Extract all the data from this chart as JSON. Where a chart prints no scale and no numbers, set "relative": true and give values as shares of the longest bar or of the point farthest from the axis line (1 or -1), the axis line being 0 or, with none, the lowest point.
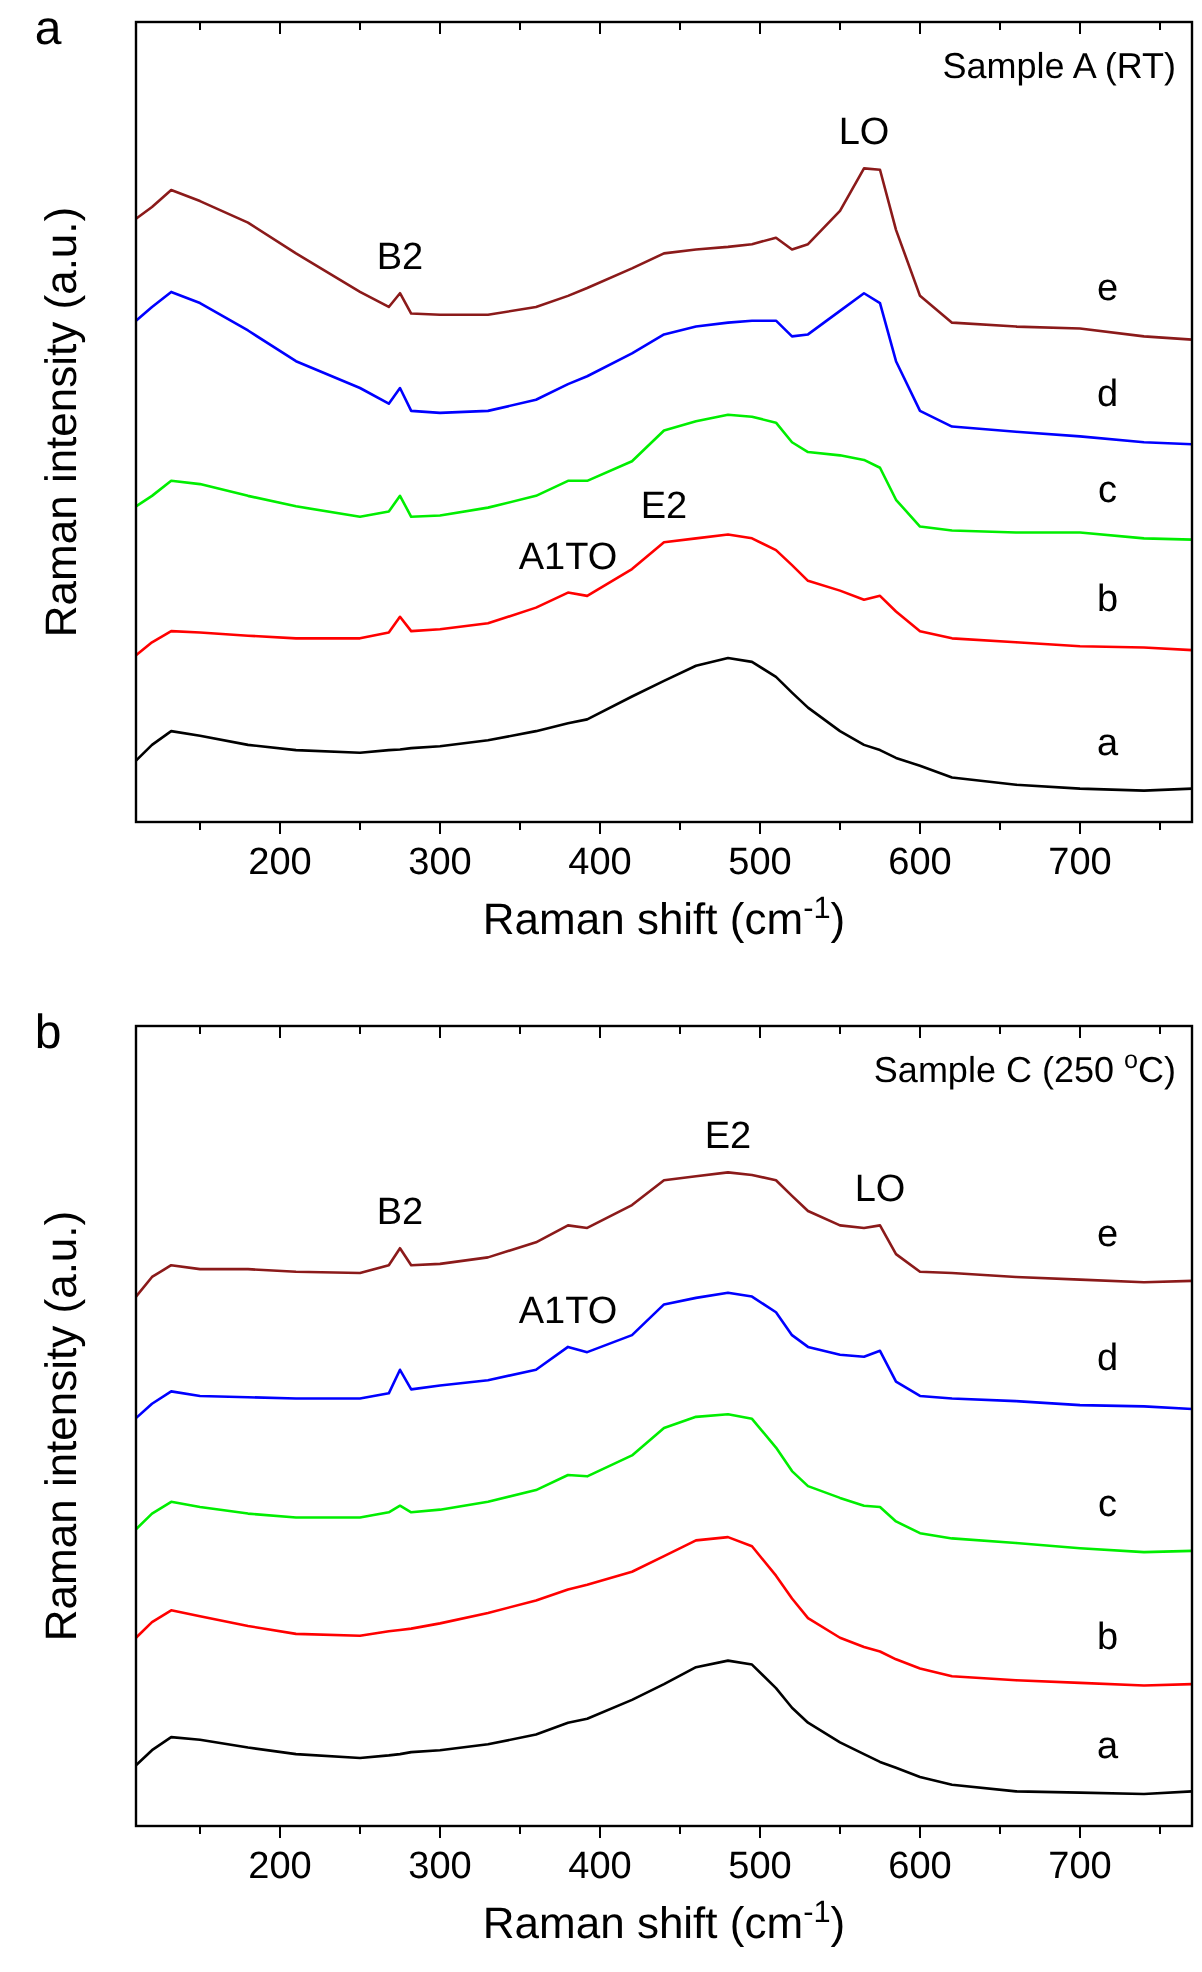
{
  "chart_data": [
    {
      "type": "line",
      "title": "a",
      "subtitle": "Sample A (RT)",
      "xlabel": "Raman shift (cm$^{-1}$)",
      "ylabel": "Raman intensity (a.u.)",
      "relative": true,
      "xlim": [
        110,
        770
      ],
      "xticks": [
        {
          "value": 150,
          "label": null
        },
        200,
        {
          "value": 250,
          "label": null
        },
        300,
        {
          "value": 350,
          "label": null
        },
        400,
        {
          "value": 450,
          "label": null
        },
        500,
        {
          "value": 550,
          "label": null
        },
        600,
        {
          "value": 650,
          "label": null
        },
        700,
        {
          "value": 750,
          "label": null
        }
      ],
      "grid": false,
      "marker": "none",
      "line_style": "solid",
      "x": [
        110,
        120,
        132,
        150,
        180,
        210,
        250,
        268,
        275,
        282,
        300,
        330,
        360,
        380,
        392,
        420,
        440,
        460,
        480,
        495,
        510,
        520,
        530,
        550,
        565,
        575,
        585,
        600,
        620,
        660,
        700,
        740,
        770
      ],
      "series": [
        {
          "name": "a",
          "color": "#000000",
          "values": [
            0.094,
            0.118,
            0.139,
            0.132,
            0.118,
            0.11,
            0.106,
            0.11,
            0.111,
            0.113,
            0.116,
            0.125,
            0.139,
            0.151,
            0.157,
            0.192,
            0.216,
            0.239,
            0.251,
            0.245,
            0.222,
            0.198,
            0.175,
            0.139,
            0.118,
            0.11,
            0.098,
            0.086,
            0.068,
            0.057,
            0.051,
            0.048,
            0.051
          ]
        },
        {
          "name": "b",
          "color": "#ff0000",
          "values": [
            0.255,
            0.275,
            0.292,
            0.29,
            0.285,
            0.281,
            0.281,
            0.29,
            0.314,
            0.292,
            0.295,
            0.304,
            0.328,
            0.351,
            0.346,
            0.387,
            0.428,
            0.434,
            0.44,
            0.434,
            0.416,
            0.393,
            0.369,
            0.354,
            0.34,
            0.346,
            0.322,
            0.292,
            0.281,
            0.275,
            0.269,
            0.267,
            0.263
          ]
        },
        {
          "name": "c",
          "color": "#00ee00",
          "values": [
            0.483,
            0.499,
            0.522,
            0.517,
            0.499,
            0.483,
            0.467,
            0.475,
            0.499,
            0.467,
            0.469,
            0.481,
            0.499,
            0.522,
            0.522,
            0.552,
            0.599,
            0.613,
            0.623,
            0.62,
            0.611,
            0.581,
            0.566,
            0.561,
            0.554,
            0.542,
            0.493,
            0.452,
            0.446,
            0.443,
            0.443,
            0.434,
            0.432
          ]
        },
        {
          "name": "d",
          "color": "#0000ff",
          "values": [
            0.767,
            0.788,
            0.811,
            0.794,
            0.752,
            0.705,
            0.664,
            0.64,
            0.664,
            0.629,
            0.626,
            0.629,
            0.646,
            0.67,
            0.682,
            0.717,
            0.746,
            0.758,
            0.764,
            0.767,
            0.767,
            0.743,
            0.746,
            0.782,
            0.809,
            0.794,
            0.705,
            0.629,
            0.605,
            0.597,
            0.59,
            0.581,
            0.578
          ]
        },
        {
          "name": "e",
          "color": "#8b1a1a",
          "values": [
            0.923,
            0.941,
            0.967,
            0.95,
            0.917,
            0.87,
            0.811,
            0.788,
            0.809,
            0.778,
            0.776,
            0.776,
            0.788,
            0.805,
            0.817,
            0.847,
            0.87,
            0.876,
            0.88,
            0.884,
            0.894,
            0.876,
            0.884,
            0.935,
            1.0,
            0.998,
            0.906,
            0.805,
            0.764,
            0.758,
            0.755,
            0.743,
            0.738
          ]
        }
      ],
      "annotations": [
        {
          "text": "B2",
          "x": 275,
          "y": 0.809
        },
        {
          "text": "A1TO",
          "x": 380,
          "y": 0.351
        },
        {
          "text": "E2",
          "x": 440,
          "y": 0.428
        },
        {
          "text": "LO",
          "x": 565,
          "y": 1.0
        }
      ]
    },
    {
      "type": "line",
      "title": "b",
      "subtitle": "Sample C (250 $^{o}$C)",
      "xlabel": "Raman shift (cm$^{-1}$)",
      "ylabel": "Raman intensity (a.u.)",
      "relative": true,
      "xlim": [
        110,
        770
      ],
      "xticks": [
        {
          "value": 150,
          "label": null
        },
        200,
        {
          "value": 250,
          "label": null
        },
        300,
        {
          "value": 350,
          "label": null
        },
        400,
        {
          "value": 450,
          "label": null
        },
        500,
        {
          "value": 550,
          "label": null
        },
        600,
        {
          "value": 650,
          "label": null
        },
        700,
        {
          "value": 750,
          "label": null
        }
      ],
      "grid": false,
      "marker": "none",
      "line_style": "solid",
      "x": [
        110,
        120,
        132,
        150,
        180,
        210,
        250,
        268,
        275,
        282,
        300,
        330,
        360,
        380,
        392,
        420,
        440,
        460,
        480,
        495,
        510,
        520,
        530,
        550,
        565,
        575,
        585,
        600,
        620,
        660,
        700,
        740,
        770
      ],
      "series": [
        {
          "name": "a",
          "color": "#000000",
          "values": [
            0.093,
            0.116,
            0.136,
            0.132,
            0.12,
            0.11,
            0.104,
            0.108,
            0.11,
            0.113,
            0.116,
            0.125,
            0.14,
            0.158,
            0.164,
            0.193,
            0.217,
            0.243,
            0.253,
            0.247,
            0.211,
            0.181,
            0.158,
            0.128,
            0.11,
            0.098,
            0.089,
            0.075,
            0.063,
            0.053,
            0.051,
            0.049,
            0.053
          ]
        },
        {
          "name": "b",
          "color": "#ff0000",
          "values": [
            0.288,
            0.312,
            0.33,
            0.321,
            0.306,
            0.294,
            0.291,
            0.298,
            0.3,
            0.302,
            0.31,
            0.326,
            0.345,
            0.362,
            0.369,
            0.389,
            0.413,
            0.437,
            0.442,
            0.428,
            0.383,
            0.348,
            0.318,
            0.288,
            0.274,
            0.267,
            0.255,
            0.241,
            0.229,
            0.223,
            0.219,
            0.215,
            0.217
          ]
        },
        {
          "name": "c",
          "color": "#00ee00",
          "values": [
            0.454,
            0.478,
            0.496,
            0.488,
            0.478,
            0.472,
            0.472,
            0.48,
            0.49,
            0.48,
            0.484,
            0.496,
            0.514,
            0.537,
            0.535,
            0.567,
            0.609,
            0.626,
            0.63,
            0.623,
            0.579,
            0.543,
            0.52,
            0.502,
            0.49,
            0.488,
            0.466,
            0.448,
            0.44,
            0.433,
            0.425,
            0.419,
            0.421
          ]
        },
        {
          "name": "d",
          "color": "#0000ff",
          "values": [
            0.624,
            0.646,
            0.665,
            0.658,
            0.656,
            0.654,
            0.654,
            0.662,
            0.698,
            0.668,
            0.674,
            0.682,
            0.698,
            0.733,
            0.725,
            0.751,
            0.798,
            0.808,
            0.816,
            0.81,
            0.786,
            0.751,
            0.733,
            0.721,
            0.718,
            0.727,
            0.68,
            0.658,
            0.654,
            0.65,
            0.644,
            0.642,
            0.638
          ]
        },
        {
          "name": "e",
          "color": "#8b1a1a",
          "values": [
            0.81,
            0.84,
            0.858,
            0.852,
            0.852,
            0.848,
            0.846,
            0.858,
            0.884,
            0.858,
            0.86,
            0.87,
            0.893,
            0.919,
            0.915,
            0.95,
            0.988,
            0.994,
            1.0,
            0.996,
            0.988,
            0.964,
            0.941,
            0.919,
            0.915,
            0.919,
            0.875,
            0.848,
            0.846,
            0.84,
            0.836,
            0.832,
            0.834
          ]
        }
      ],
      "annotations": [
        {
          "text": "B2",
          "x": 275,
          "y": 0.884
        },
        {
          "text": "A1TO",
          "x": 380,
          "y": 0.733
        },
        {
          "text": "E2",
          "x": 480,
          "y": 1.0
        },
        {
          "text": "LO",
          "x": 575,
          "y": 0.919
        }
      ]
    }
  ]
}
